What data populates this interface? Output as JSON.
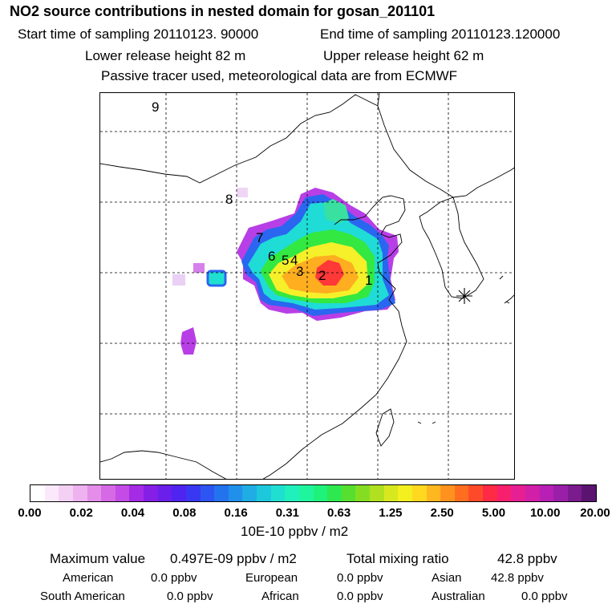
{
  "header": {
    "title": "NO2 source contributions in nested domain for gosan_201101",
    "start_time": "Start time of sampling 20110123. 90000",
    "end_time": "End time of sampling 20110123.120000",
    "lower_release": "Lower release height   82 m",
    "upper_release": "Upper release height   62 m",
    "tracer_note": "Passive tracer used, meteorological data are from ECMWF"
  },
  "map": {
    "trajectory_markers": [
      "1",
      "2",
      "3",
      "4",
      "5",
      "6",
      "7",
      "8",
      "9"
    ],
    "receptor_marker_icon": "asterisk-receptor-icon"
  },
  "colorbar": {
    "colors": [
      "#ffffff",
      "#fbe9fb",
      "#f4d0f4",
      "#eeb2f0",
      "#e48de9",
      "#d569e6",
      "#c44be6",
      "#a52be4",
      "#861fe6",
      "#6a1fea",
      "#4f24f0",
      "#3838f2",
      "#2d55f2",
      "#2373ee",
      "#2190ea",
      "#1fade4",
      "#1ec8dc",
      "#1fe0d0",
      "#1ff0bc",
      "#1ff59d",
      "#1ff27a",
      "#2ee850",
      "#56df2e",
      "#84dd22",
      "#b0e01f",
      "#d8e81f",
      "#f4ef1f",
      "#ffd81f",
      "#ffb71f",
      "#ff921f",
      "#ff6e1f",
      "#ff4a2a",
      "#ff2a45",
      "#f71f6e",
      "#e61f92",
      "#d11fa8",
      "#b81fb4",
      "#9a1fa8",
      "#7a1b8e",
      "#5a1470"
    ],
    "tick_labels": [
      "0.00",
      "0.02",
      "0.04",
      "0.08",
      "0.16",
      "0.31",
      "0.63",
      "1.25",
      "2.50",
      "5.00",
      "10.00",
      "20.00"
    ],
    "units": "10E-10 ppbv / m2"
  },
  "stats": {
    "max_label": "Maximum value",
    "max_value": "0.497E-09 ppbv / m2",
    "total_label": "Total mixing ratio",
    "total_value": "42.8 ppbv",
    "regions": [
      {
        "name": "American",
        "value": "0.0 ppbv"
      },
      {
        "name": "European",
        "value": "0.0 ppbv"
      },
      {
        "name": "Asian",
        "value": "42.8 ppbv"
      },
      {
        "name": "South American",
        "value": "0.0 ppbv"
      },
      {
        "name": "African",
        "value": "0.0 ppbv"
      },
      {
        "name": "Australian",
        "value": "0.0 ppbv"
      }
    ]
  }
}
